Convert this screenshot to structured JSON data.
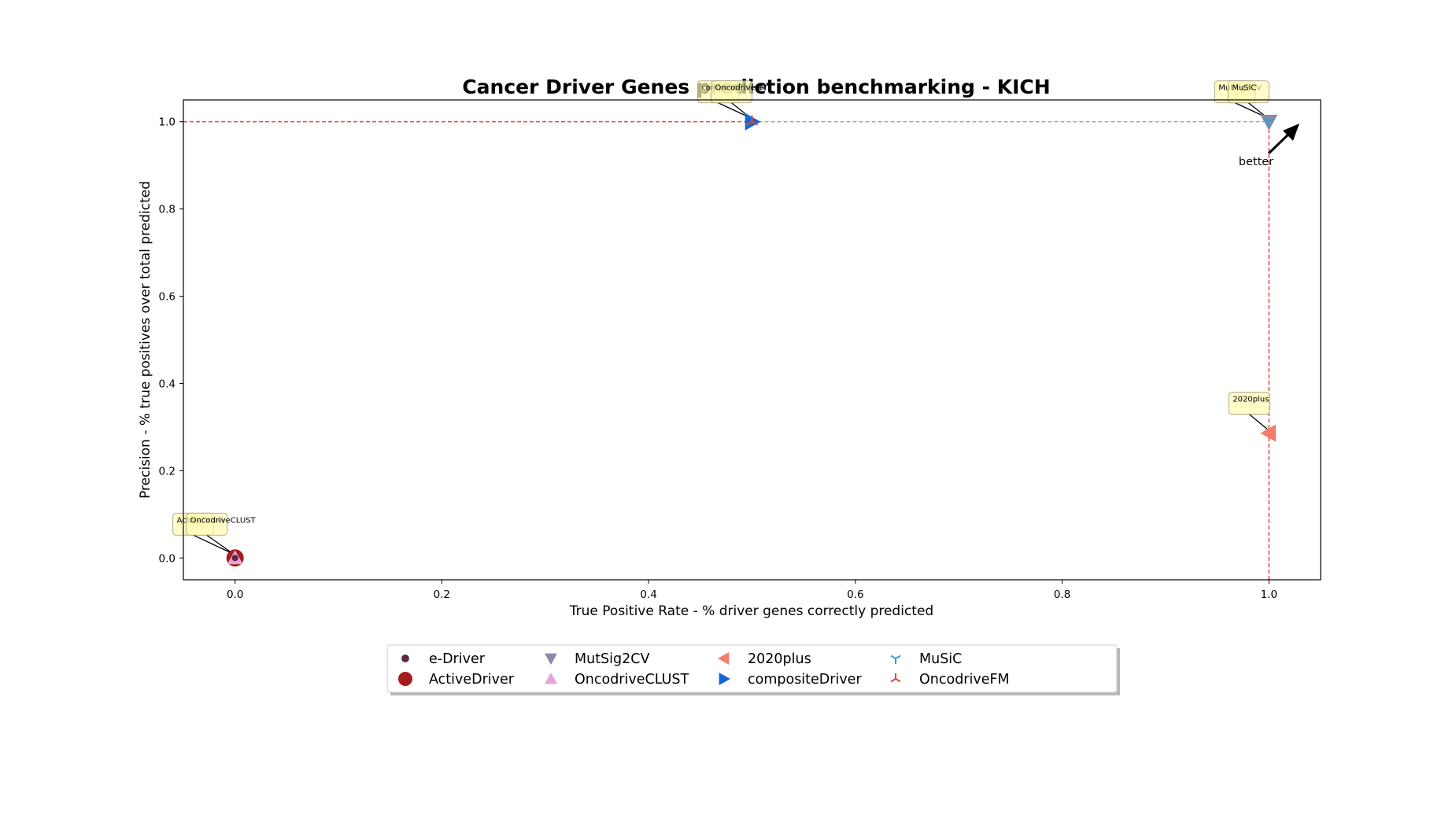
{
  "chart_data": {
    "type": "scatter",
    "title": "Cancer Driver Genes prediction benchmarking - KICH",
    "xlabel": "True Positive Rate - % driver genes correctly predicted",
    "ylabel": "Precision - % true positives over total predicted",
    "xlim": [
      -0.05,
      1.05
    ],
    "ylim": [
      -0.05,
      1.05
    ],
    "xticks": [
      "0.0",
      "0.2",
      "0.4",
      "0.6",
      "0.8",
      "1.0"
    ],
    "yticks": [
      "0.0",
      "0.2",
      "0.4",
      "0.6",
      "0.8",
      "1.0"
    ],
    "xtick_values": [
      0.0,
      0.2,
      0.4,
      0.6,
      0.8,
      1.0
    ],
    "ytick_values": [
      0.0,
      0.2,
      0.4,
      0.6,
      0.8,
      1.0
    ],
    "grid": false,
    "legend_position": "bottom-center",
    "better_label": "better",
    "series": [
      {
        "name": "e-Driver",
        "marker": "dot",
        "color": "#5b2a46",
        "x": 0.0,
        "y": 0.0,
        "show_annotation": false
      },
      {
        "name": "ActiveDriver",
        "marker": "circle",
        "color": "#a51c1c",
        "x": 0.0,
        "y": 0.0,
        "show_annotation": true
      },
      {
        "name": "MutSig2CV",
        "marker": "triangle-down",
        "color": "#8a8aa8",
        "x": 1.0,
        "y": 1.0,
        "show_annotation": true
      },
      {
        "name": "OncodriveCLUST",
        "marker": "triangle-up",
        "color": "#e5a4d8",
        "x": 0.0,
        "y": 0.0,
        "show_annotation": true
      },
      {
        "name": "2020plus",
        "marker": "triangle-left",
        "color": "#f47c6a",
        "x": 1.0,
        "y": 0.286,
        "show_annotation": true
      },
      {
        "name": "compositeDriver",
        "marker": "triangle-right",
        "color": "#1565d8",
        "x": 0.5,
        "y": 1.0,
        "show_annotation": true
      },
      {
        "name": "MuSiC",
        "marker": "tri-down",
        "color": "#2aa6c9",
        "x": 1.0,
        "y": 1.0,
        "show_annotation": true
      },
      {
        "name": "OncodriveFM",
        "marker": "tri-up",
        "color": "#e04a2a",
        "x": 0.5,
        "y": 1.0,
        "show_annotation": true
      }
    ],
    "reference_lines": [
      {
        "kind": "horizontal",
        "y": 1.0,
        "from_x": -0.05,
        "to_x": 0.5,
        "color": "#e83030",
        "style": "dashed"
      },
      {
        "kind": "horizontal",
        "y": 1.0,
        "from_x": 0.5,
        "to_x": 1.0,
        "color": "#999999",
        "style": "dashed"
      },
      {
        "kind": "vertical",
        "x": 1.0,
        "from_y": -0.05,
        "to_y": 1.0,
        "color": "#e83030",
        "style": "dashed"
      }
    ]
  }
}
